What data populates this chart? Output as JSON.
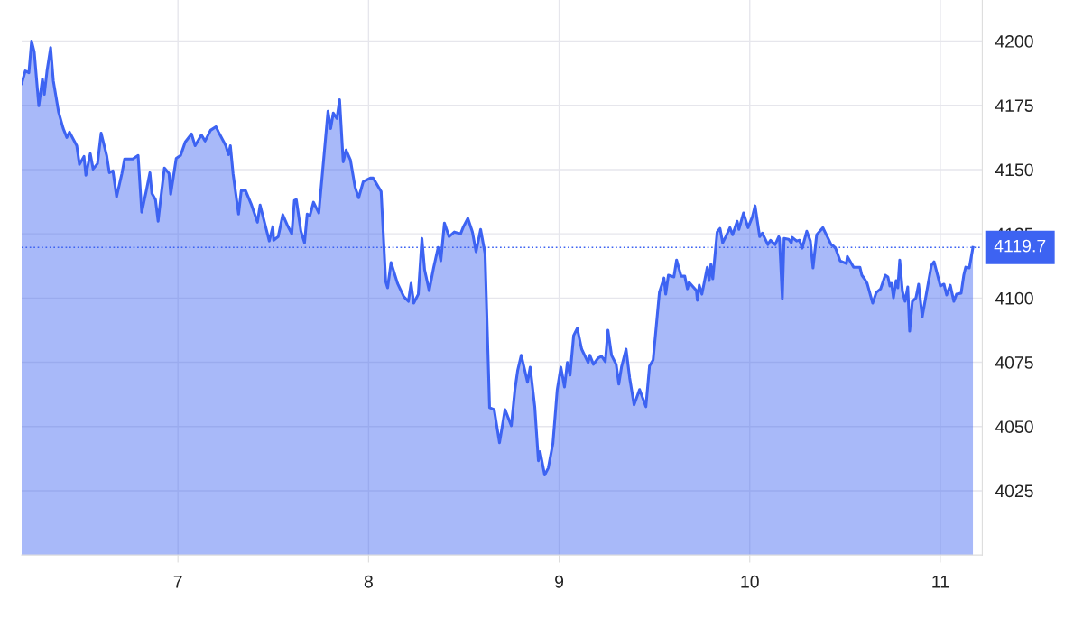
{
  "chart_data": {
    "type": "area",
    "xlim": [
      6.18,
      11.22
    ],
    "xticks": [
      7,
      8,
      9,
      10,
      11
    ],
    "ylim": [
      4000,
      4216
    ],
    "yticks": [
      4025,
      4050,
      4075,
      4100,
      4125,
      4150,
      4175,
      4200
    ],
    "grid": true,
    "ref_lines": [
      {
        "axis": "y",
        "value": 4119.7,
        "label": "4119.7",
        "color": "#3d63f2",
        "line_style": "dotted"
      }
    ],
    "series": [
      {
        "color": "#3d63f2",
        "x": [
          6.18,
          6.199,
          6.218,
          6.232,
          6.246,
          6.27,
          6.289,
          6.299,
          6.313,
          6.332,
          6.346,
          6.374,
          6.398,
          6.417,
          6.431,
          6.469,
          6.483,
          6.507,
          6.517,
          6.54,
          6.555,
          6.578,
          6.597,
          6.626,
          6.64,
          6.659,
          6.678,
          6.706,
          6.72,
          6.763,
          6.791,
          6.81,
          6.834,
          6.853,
          6.863,
          6.882,
          6.896,
          6.91,
          6.929,
          6.953,
          6.962,
          6.991,
          7.014,
          7.038,
          7.071,
          7.09,
          7.123,
          7.142,
          7.171,
          7.199,
          7.213,
          7.251,
          7.265,
          7.275,
          7.289,
          7.318,
          7.332,
          7.355,
          7.384,
          7.417,
          7.431,
          7.479,
          7.498,
          7.502,
          7.526,
          7.55,
          7.573,
          7.597,
          7.611,
          7.621,
          7.645,
          7.664,
          7.678,
          7.692,
          7.711,
          7.739,
          7.787,
          7.801,
          7.815,
          7.834,
          7.848,
          7.867,
          7.882,
          7.905,
          7.929,
          7.948,
          7.972,
          8.009,
          8.024,
          8.066,
          8.09,
          8.1,
          8.118,
          8.152,
          8.185,
          8.209,
          8.223,
          8.237,
          8.261,
          8.28,
          8.294,
          8.318,
          8.341,
          8.365,
          8.379,
          8.398,
          8.422,
          8.45,
          8.483,
          8.498,
          8.521,
          8.545,
          8.564,
          8.588,
          8.611,
          8.635,
          8.659,
          8.687,
          8.716,
          8.749,
          8.768,
          8.782,
          8.801,
          8.82,
          8.834,
          8.848,
          8.872,
          8.891,
          8.9,
          8.924,
          8.943,
          8.967,
          8.99,
          9.009,
          9.028,
          9.043,
          9.057,
          9.076,
          9.095,
          9.118,
          9.152,
          9.161,
          9.18,
          9.204,
          9.223,
          9.242,
          9.256,
          9.275,
          9.299,
          9.313,
          9.327,
          9.351,
          9.37,
          9.393,
          9.422,
          9.455,
          9.474,
          9.493,
          9.526,
          9.55,
          9.559,
          9.573,
          9.602,
          9.616,
          9.64,
          9.659,
          9.673,
          9.682,
          9.72,
          9.725,
          9.735,
          9.749,
          9.777,
          9.787,
          9.796,
          9.806,
          9.829,
          9.844,
          9.858,
          9.877,
          9.896,
          9.91,
          9.934,
          9.943,
          9.967,
          9.991,
          10.014,
          10.028,
          10.052,
          10.066,
          10.095,
          10.109,
          10.133,
          10.152,
          10.156,
          10.171,
          10.18,
          10.204,
          10.218,
          10.223,
          10.246,
          10.261,
          10.275,
          10.299,
          10.318,
          10.332,
          10.351,
          10.384,
          10.393,
          10.427,
          10.441,
          10.45,
          10.474,
          10.507,
          10.512,
          10.545,
          10.578,
          10.588,
          10.602,
          10.616,
          10.645,
          10.664,
          10.687,
          10.711,
          10.725,
          10.735,
          10.744,
          10.754,
          10.768,
          10.777,
          10.787,
          10.801,
          10.815,
          10.829,
          10.839,
          10.853,
          10.872,
          10.886,
          10.905,
          10.953,
          10.967,
          11.0,
          11.019,
          11.033,
          11.052,
          11.071,
          11.085,
          11.109,
          11.123,
          11.133,
          11.152,
          11.171
        ],
        "values": [
          4183.5,
          4188.4,
          4187.7,
          4200.0,
          4195.8,
          4174.8,
          4185.3,
          4179.3,
          4188.4,
          4197.5,
          4184.6,
          4172.3,
          4166.0,
          4162.5,
          4164.6,
          4159.3,
          4152.0,
          4155.1,
          4147.8,
          4156.2,
          4150.2,
          4152.3,
          4164.2,
          4155.5,
          4148.8,
          4149.5,
          4139.4,
          4148.5,
          4154.1,
          4154.1,
          4155.5,
          4133.4,
          4141.8,
          4148.8,
          4140.8,
          4138.3,
          4129.9,
          4139.0,
          4150.6,
          4148.5,
          4140.4,
          4154.4,
          4155.5,
          4160.7,
          4163.9,
          4159.3,
          4163.5,
          4161.1,
          4165.3,
          4166.7,
          4164.6,
          4159.3,
          4155.8,
          4159.3,
          4148.5,
          4132.7,
          4141.8,
          4141.8,
          4136.6,
          4129.5,
          4136.2,
          4122.2,
          4127.8,
          4122.5,
          4123.9,
          4132.4,
          4128.5,
          4125.0,
          4138.0,
          4138.3,
          4126.0,
          4121.5,
          4132.7,
          4132.0,
          4137.3,
          4133.1,
          4172.7,
          4166.0,
          4172.0,
          4169.9,
          4177.2,
          4153.0,
          4157.6,
          4153.7,
          4143.2,
          4139.0,
          4145.3,
          4146.7,
          4146.7,
          4141.5,
          4106.4,
          4104.0,
          4113.8,
          4105.7,
          4100.5,
          4098.7,
          4105.7,
          4098.0,
          4101.5,
          4123.2,
          4111.0,
          4102.9,
          4111.7,
          4119.7,
          4114.5,
          4129.2,
          4123.9,
          4125.7,
          4125.0,
          4127.8,
          4131.0,
          4125.7,
          4118.0,
          4126.7,
          4117.3,
          4057.3,
          4056.6,
          4043.7,
          4056.6,
          4050.3,
          4064.4,
          4071.7,
          4077.7,
          4071.7,
          4067.2,
          4073.1,
          4057.7,
          4036.7,
          4040.2,
          4031.1,
          4033.9,
          4043.3,
          4064.4,
          4073.1,
          4065.4,
          4074.9,
          4070.0,
          4085.4,
          4088.2,
          4080.1,
          4074.9,
          4077.7,
          4074.2,
          4076.6,
          4077.3,
          4075.2,
          4087.5,
          4077.7,
          4074.2,
          4066.5,
          4073.1,
          4080.1,
          4068.9,
          4058.4,
          4064.4,
          4057.7,
          4073.5,
          4075.9,
          4102.2,
          4107.8,
          4101.5,
          4108.9,
          4108.2,
          4114.8,
          4108.5,
          4108.5,
          4103.6,
          4106.1,
          4102.9,
          4099.1,
          4105.0,
          4101.5,
          4112.0,
          4106.8,
          4113.1,
          4107.5,
          4125.7,
          4127.1,
          4121.5,
          4124.3,
          4127.4,
          4124.6,
          4129.9,
          4126.7,
          4133.1,
          4127.4,
          4131.7,
          4135.9,
          4123.9,
          4125.3,
          4120.8,
          4122.5,
          4120.8,
          4123.9,
          4123.2,
          4099.8,
          4123.2,
          4122.9,
          4121.5,
          4123.6,
          4122.2,
          4122.5,
          4119.4,
          4126.0,
          4122.2,
          4111.7,
          4124.6,
          4127.4,
          4126.0,
          4120.8,
          4120.1,
          4119.4,
          4114.5,
          4113.4,
          4116.2,
          4112.0,
          4112.0,
          4108.9,
          4107.5,
          4105.7,
          4098.0,
          4102.2,
          4103.6,
          4108.9,
          4108.2,
          4104.7,
          4105.7,
          4100.1,
          4106.8,
          4104.0,
          4114.8,
          4102.6,
          4098.7,
          4104.3,
          4087.1,
          4098.7,
          4100.1,
          4105.4,
          4092.7,
          4112.7,
          4114.1,
          4104.7,
          4105.4,
          4101.2,
          4105.0,
          4098.7,
          4101.5,
          4101.9,
          4108.9,
          4112.0,
          4111.7,
          4119.7
        ]
      }
    ]
  }
}
